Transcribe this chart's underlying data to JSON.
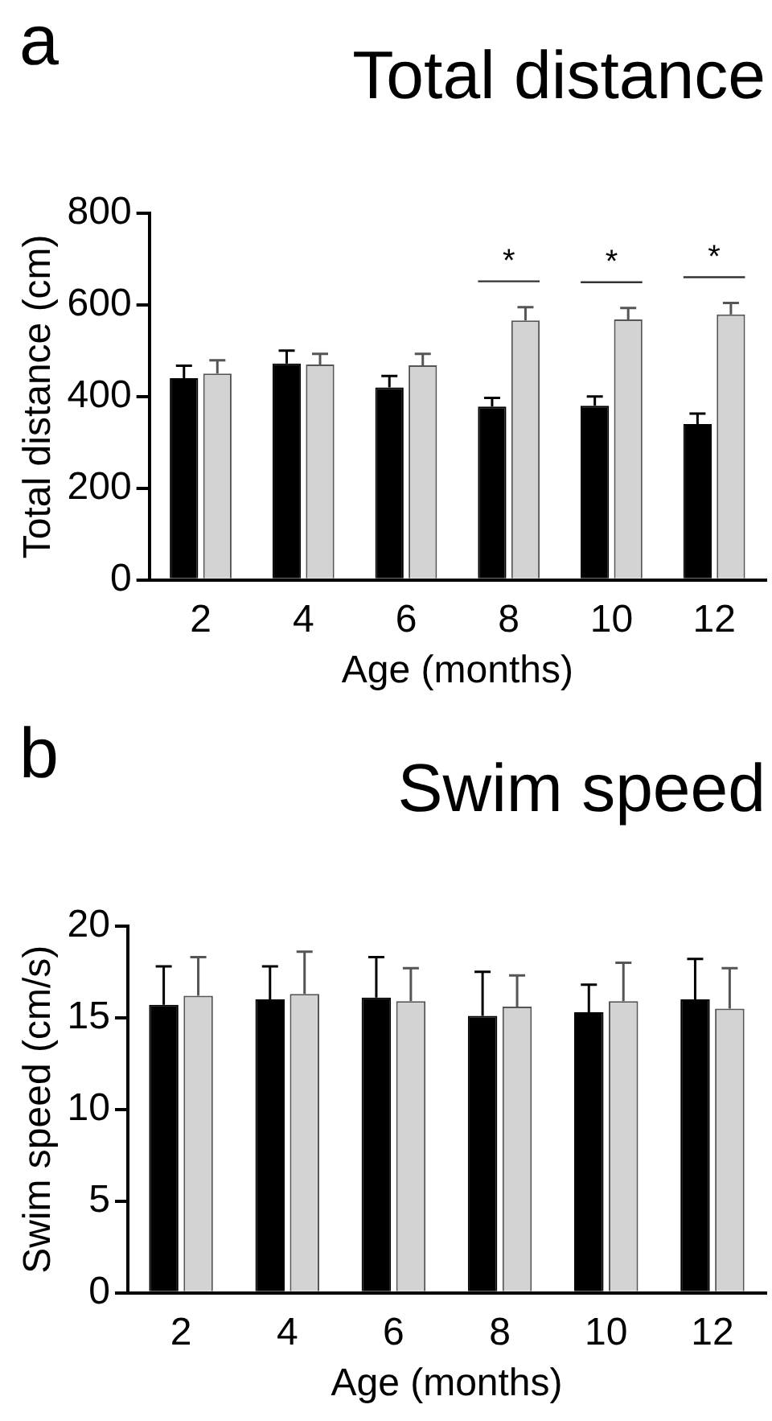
{
  "chart_data": [
    {
      "type": "bar",
      "title": "Total distance",
      "xlabel": "Age (months)",
      "ylabel": "Total distance (cm)",
      "categories": [
        "2",
        "4",
        "6",
        "8",
        "10",
        "12"
      ],
      "series": [
        {
          "color": "#000000",
          "values": [
            440,
            472,
            420,
            378,
            380,
            340
          ],
          "errors": [
            27,
            28,
            25,
            19,
            20,
            23
          ]
        },
        {
          "color": "#d3d3d3",
          "values": [
            450,
            470,
            468,
            566,
            568,
            579
          ],
          "errors": [
            29,
            23,
            25,
            29,
            25,
            25
          ]
        }
      ],
      "ylim": [
        0,
        800
      ],
      "yticks": [
        0,
        200,
        400,
        600,
        800
      ],
      "grid": false,
      "legend": false,
      "annotations": [
        "a",
        "*",
        "*",
        "*"
      ]
    },
    {
      "type": "bar",
      "title": "Swim speed",
      "xlabel": "Age (months)",
      "ylabel": "Swim speed (cm/s)",
      "categories": [
        "2",
        "4",
        "6",
        "8",
        "10",
        "12"
      ],
      "series": [
        {
          "color": "#000000",
          "values": [
            15.7,
            16.0,
            16.1,
            15.1,
            15.3,
            16.0
          ],
          "errors": [
            2.1,
            1.8,
            2.2,
            2.4,
            1.5,
            2.2
          ]
        },
        {
          "color": "#d3d3d3",
          "values": [
            16.2,
            16.3,
            15.9,
            15.6,
            15.9,
            15.5
          ],
          "errors": [
            2.1,
            2.3,
            1.8,
            1.7,
            2.1,
            2.2
          ]
        }
      ],
      "ylim": [
        0,
        20
      ],
      "yticks": [
        0,
        5,
        10,
        15,
        20
      ],
      "grid": false,
      "legend": false,
      "annotations": [
        "b"
      ]
    }
  ]
}
